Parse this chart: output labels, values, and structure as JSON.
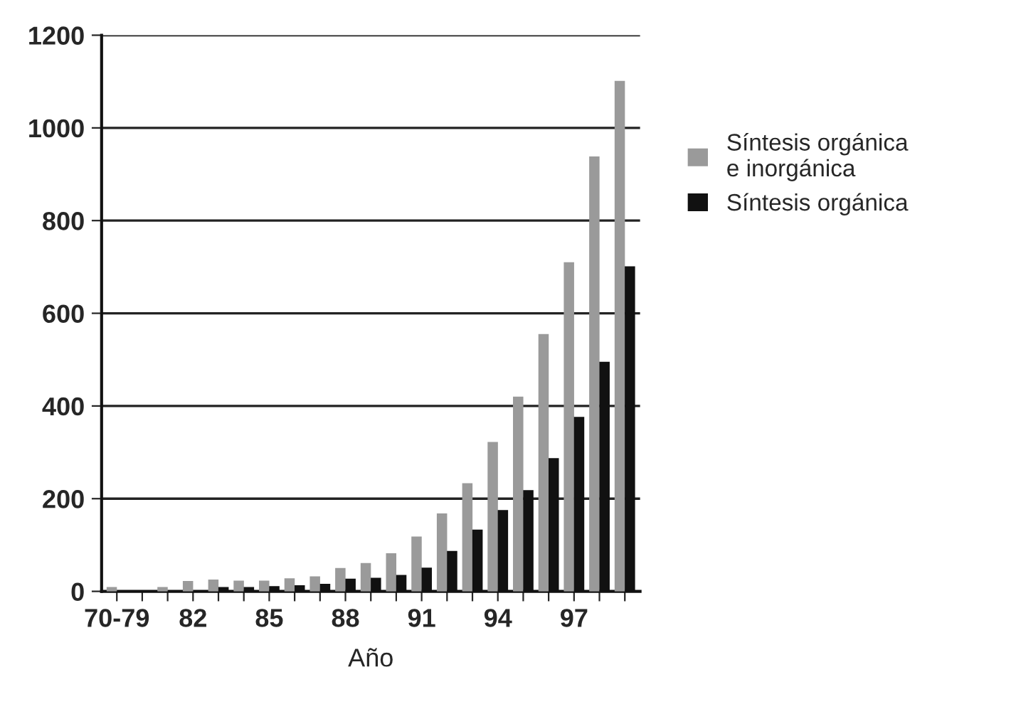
{
  "chart_data": {
    "type": "bar",
    "xlabel": "Año",
    "categories": [
      "70-79",
      null,
      null,
      "82",
      null,
      null,
      "85",
      null,
      null,
      "88",
      null,
      null,
      "91",
      null,
      null,
      "94",
      null,
      null,
      "97",
      null,
      null
    ],
    "series": [
      {
        "name": "Síntesis orgánica\ne inorgánica",
        "color": "#9a9a9a",
        "values": [
          8,
          null,
          8,
          21,
          24,
          22,
          22,
          27,
          31,
          49,
          60,
          81,
          117,
          167,
          232,
          321,
          419,
          554,
          709,
          937,
          1100
        ]
      },
      {
        "name": "Síntesis orgánica",
        "color": "#111111",
        "values": [
          null,
          null,
          null,
          null,
          8,
          8,
          10,
          12,
          15,
          26,
          28,
          34,
          50,
          86,
          132,
          174,
          217,
          286,
          375,
          494,
          700
        ]
      }
    ],
    "ylim": [
      0,
      1200
    ],
    "yticks": [
      0,
      200,
      400,
      600,
      800,
      1000,
      1200
    ],
    "grid": "y",
    "legend": "right"
  }
}
